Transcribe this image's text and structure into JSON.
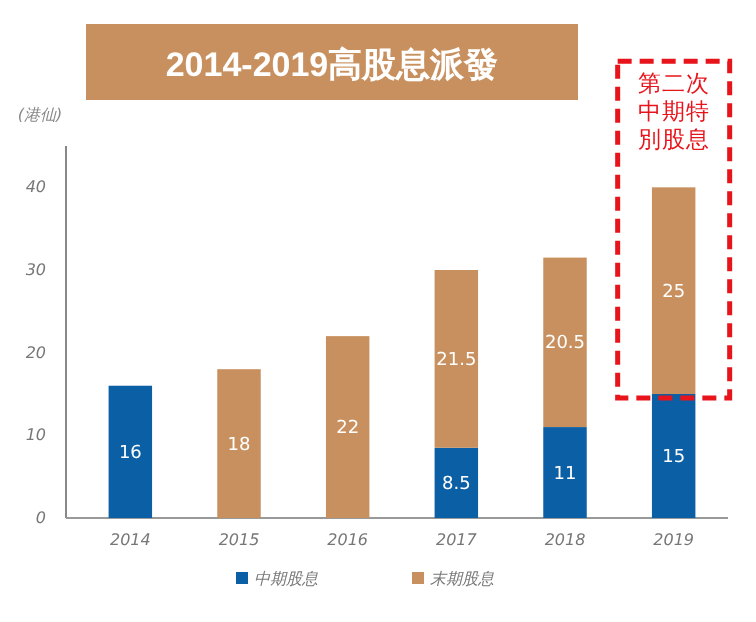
{
  "chart_data": {
    "type": "bar",
    "title": "2014-2019高股息派發",
    "ylabel": "(港仙)",
    "categories": [
      "2014",
      "2015",
      "2016",
      "2017",
      "2018",
      "2019"
    ],
    "stacked": true,
    "data_labels": true,
    "legend": "bottom",
    "grid": false,
    "series": [
      {
        "name": "中期股息",
        "color": "#0b5fa5",
        "values": [
          16,
          null,
          null,
          8.5,
          11,
          15
        ]
      },
      {
        "name": "末期股息",
        "color": "#c8905e",
        "values": [
          null,
          18,
          22,
          21.5,
          20.5,
          25
        ]
      }
    ],
    "ylim": [
      0,
      45
    ],
    "yticks": [
      0,
      10,
      20,
      30,
      40
    ],
    "annotations": [
      {
        "text": "第二次中期特別股息",
        "x": "2019",
        "y": 40
      }
    ]
  }
}
